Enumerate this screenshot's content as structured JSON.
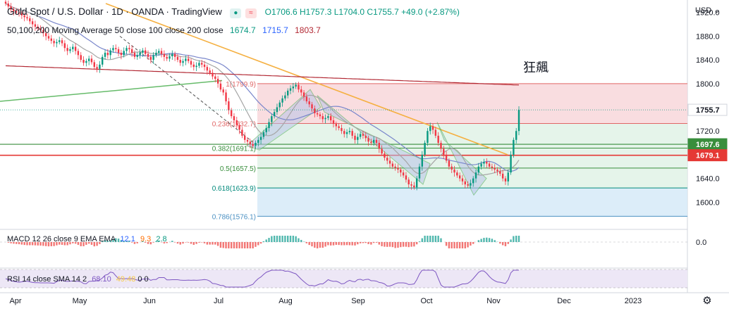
{
  "header": {
    "symbol": "Gold Spot / U.S. Dollar",
    "timeframe": "1D",
    "broker": "OANDA",
    "platform": "TradingView",
    "ohlc_text": "O1706.6 H1757.3 L1704.0 C1755.7 +49.0 (+2.87%)",
    "currency": "USD"
  },
  "ma_legend": {
    "label": "50,100,200 Moving Average 50 close 100 close 200 close",
    "v50": "1674.7",
    "v100": "1715.7",
    "v200": "1803.7"
  },
  "macd_legend": {
    "label": "MACD 12 26 close 9 EMA EMA",
    "v1": "12.1",
    "v2": "9.3",
    "v3": "2.8"
  },
  "rsi_legend": {
    "label": "RSI 14 close SMA 14 2",
    "v1": "68.10",
    "v2": "49.48",
    "v3": "0 0"
  },
  "annotation": "狂飆",
  "colors": {
    "up": "#089981",
    "down": "#f23645",
    "fib_red": "#f8d7da",
    "fib_green": "#e1f2e6",
    "fib_blue": "#d6eaf8",
    "ma50": "#089981",
    "ma100": "#2962ff",
    "ma200": "#b22833",
    "trend_orange": "#f5b041",
    "support_red": "#e53935",
    "support_green": "#388e3c"
  },
  "chart_data": {
    "type": "candlestick",
    "y_axis_ticks": [
      "1920.0",
      "1880.0",
      "1840.0",
      "1800.0",
      "1720.0",
      "1640.0",
      "1600.0"
    ],
    "y_range": [
      1560,
      1935
    ],
    "price_labels": [
      {
        "value": 1755.7,
        "text": "1755.7",
        "style": "current"
      },
      {
        "value": 1697.6,
        "text": "1697.6",
        "style": "green"
      },
      {
        "value": 1679.1,
        "text": "1679.1",
        "style": "red"
      }
    ],
    "x_labels": [
      "Apr",
      "May",
      "Jun",
      "Jul",
      "Aug",
      "Sep",
      "Oct",
      "Nov",
      "Dec",
      "2023"
    ],
    "fib_levels": [
      {
        "ratio": "1",
        "price": 1799.9,
        "label": "1(1799.9)"
      },
      {
        "ratio": "0.236",
        "price": 1732.7,
        "label": "0.236(1732.7)"
      },
      {
        "ratio": "0.382",
        "price": 1691.1,
        "label": "0.382(1691.1)"
      },
      {
        "ratio": "0.5",
        "price": 1657.5,
        "label": "0.5(1657.5)"
      },
      {
        "ratio": "0.618",
        "price": 1623.9,
        "label": "0.618(1623.9)"
      },
      {
        "ratio": "0.786",
        "price": 1576.1,
        "label": "0.786(1576.1)"
      }
    ],
    "closes": [
      1935,
      1930,
      1925,
      1922,
      1920,
      1918,
      1915,
      1912,
      1910,
      1905,
      1900,
      1896,
      1893,
      1890,
      1885,
      1880,
      1876,
      1872,
      1868,
      1870,
      1873,
      1868,
      1860,
      1855,
      1858,
      1862,
      1855,
      1848,
      1840,
      1835,
      1838,
      1842,
      1836,
      1828,
      1825,
      1832,
      1845,
      1852,
      1848,
      1856,
      1860,
      1858,
      1852,
      1848,
      1855,
      1860,
      1858,
      1852,
      1845,
      1848,
      1852,
      1856,
      1850,
      1845,
      1840,
      1848,
      1852,
      1855,
      1850,
      1845,
      1842,
      1846,
      1850,
      1845,
      1840,
      1835,
      1838,
      1842,
      1838,
      1832,
      1828,
      1830,
      1835,
      1832,
      1828,
      1822,
      1818,
      1812,
      1808,
      1800,
      1790,
      1785,
      1770,
      1755,
      1745,
      1738,
      1730,
      1722,
      1712,
      1705,
      1702,
      1698,
      1695,
      1700,
      1705,
      1710,
      1718,
      1725,
      1735,
      1745,
      1752,
      1760,
      1768,
      1775,
      1780,
      1788,
      1792,
      1795,
      1798,
      1790,
      1785,
      1778,
      1770,
      1765,
      1758,
      1750,
      1748,
      1745,
      1740,
      1742,
      1745,
      1738,
      1732,
      1728,
      1725,
      1720,
      1715,
      1718,
      1720,
      1712,
      1705,
      1710,
      1715,
      1712,
      1708,
      1702,
      1700,
      1705,
      1700,
      1690,
      1682,
      1675,
      1670,
      1665,
      1660,
      1658,
      1655,
      1650,
      1645,
      1638,
      1630,
      1628,
      1625,
      1640,
      1660,
      1680,
      1700,
      1720,
      1728,
      1722,
      1712,
      1700,
      1690,
      1680,
      1670,
      1660,
      1655,
      1650,
      1645,
      1640,
      1635,
      1630,
      1628,
      1632,
      1640,
      1650,
      1660,
      1665,
      1668,
      1665,
      1660,
      1658,
      1655,
      1652,
      1648,
      1640,
      1635,
      1650,
      1680,
      1705,
      1720,
      1755.7
    ],
    "ma50": {
      "end": 1674.7
    },
    "ma100": {
      "end": 1715.7
    },
    "ma200": {
      "end": 1803.7
    }
  }
}
